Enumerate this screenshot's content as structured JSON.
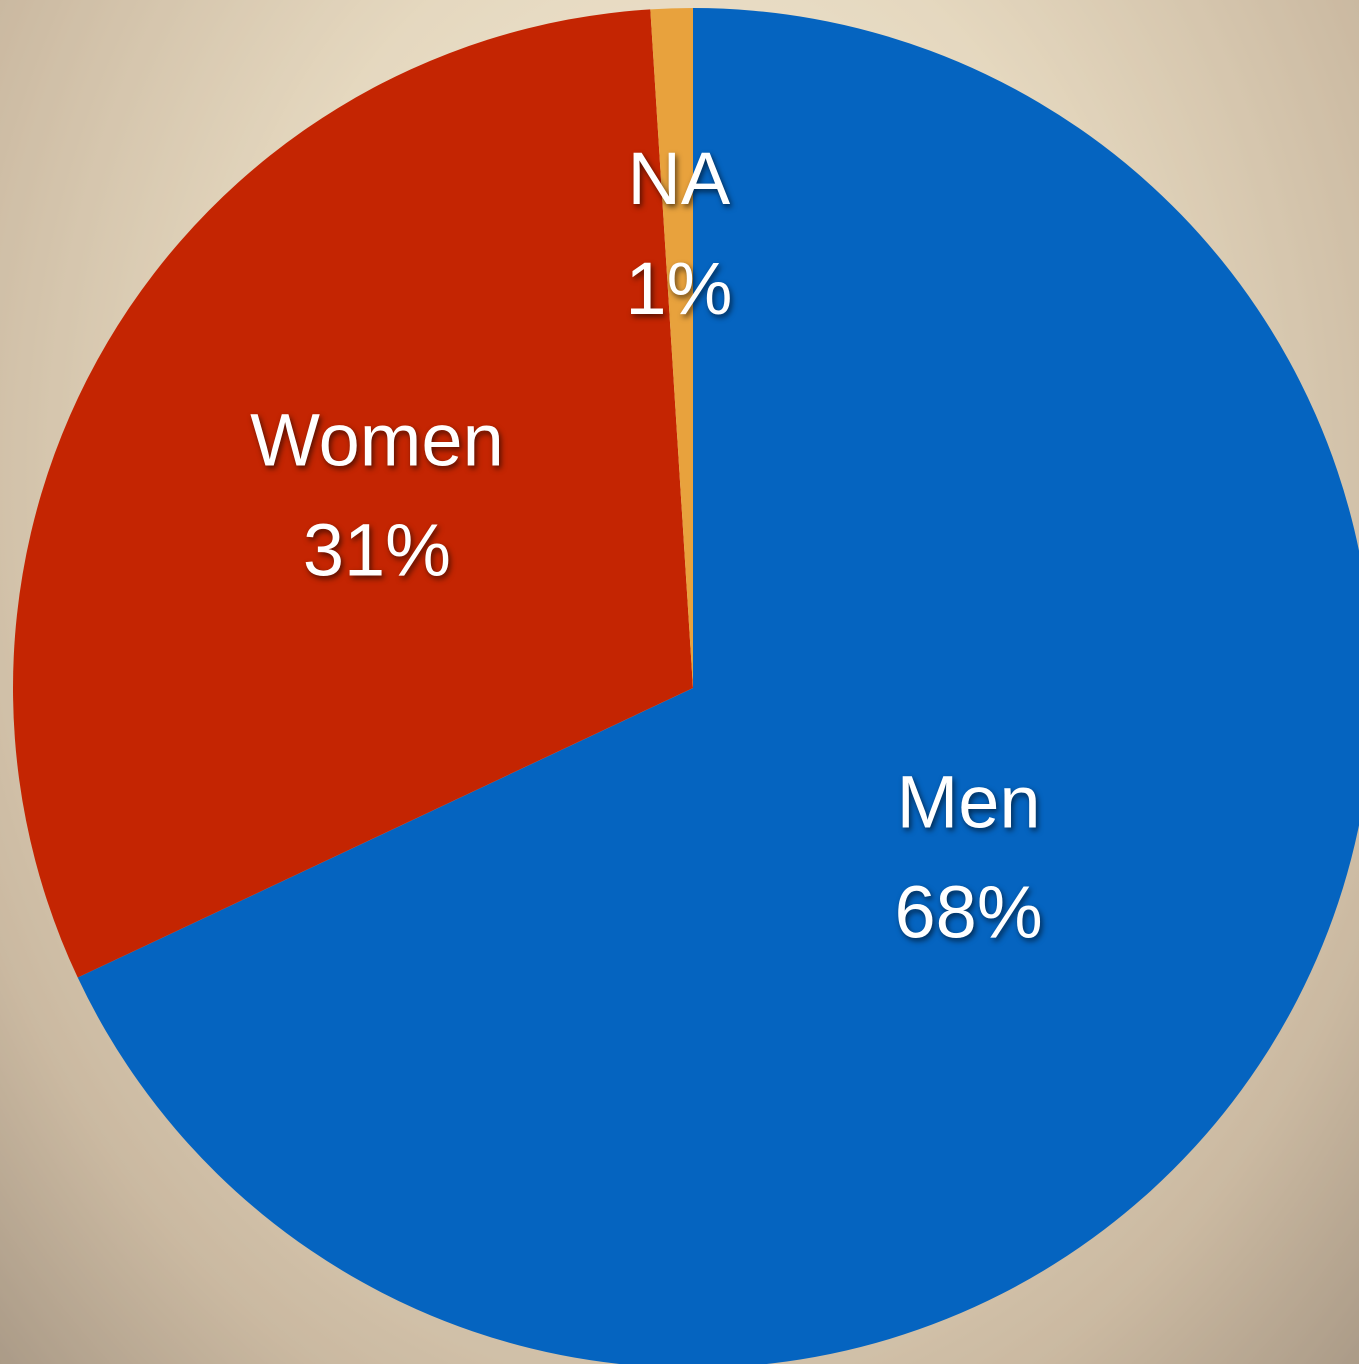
{
  "chart_data": {
    "type": "pie",
    "categories": [
      "Men",
      "Women",
      "NA"
    ],
    "values": [
      68,
      31,
      1
    ],
    "value_labels": [
      "68%",
      "31%",
      "1%"
    ],
    "colors": [
      "#0564c0",
      "#c42502",
      "#e8a23d"
    ]
  }
}
